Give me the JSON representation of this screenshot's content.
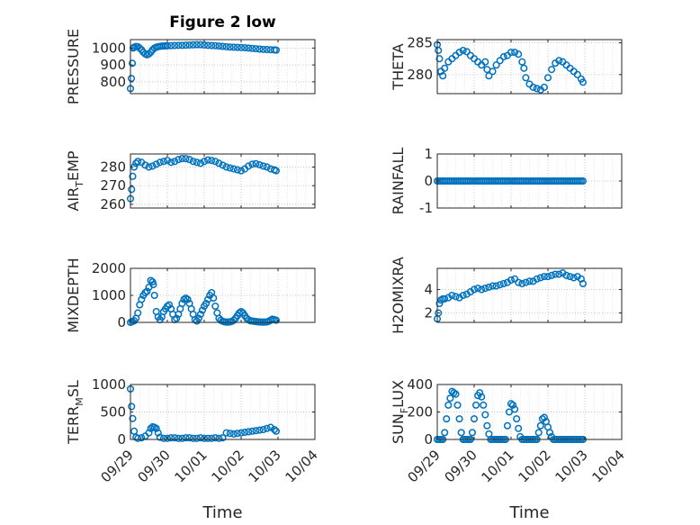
{
  "figure": {
    "title": "Figure 2 low",
    "marker_color": "#0072BD"
  },
  "time_ticks": [
    "09/29",
    "09/30",
    "10/01",
    "10/02",
    "10/03",
    "10/04"
  ],
  "chart_data": [
    {
      "type": "scatter",
      "id": "pressure",
      "title": "Figure 2 low",
      "ylabel": "PRESSURE",
      "xlabel": "",
      "xlim": [
        0,
        5
      ],
      "ylim": [
        730,
        1050
      ],
      "yticks": [
        800,
        900,
        1000
      ],
      "grid": true,
      "x": [
        0,
        0.025,
        0.05,
        0.075,
        0.1,
        0.15,
        0.2,
        0.25,
        0.3,
        0.35,
        0.4,
        0.45,
        0.5,
        0.55,
        0.6,
        0.65,
        0.7,
        0.75,
        0.8,
        0.85,
        0.9,
        0.95,
        1.0,
        1.1,
        1.2,
        1.3,
        1.4,
        1.5,
        1.6,
        1.7,
        1.8,
        1.9,
        2.0,
        2.1,
        2.2,
        2.3,
        2.4,
        2.5,
        2.6,
        2.7,
        2.8,
        2.9,
        3.0,
        3.1,
        3.2,
        3.3,
        3.4,
        3.5,
        3.6,
        3.7,
        3.8,
        3.9,
        3.95
      ],
      "y": [
        760,
        820,
        910,
        1000,
        1005,
        1010,
        1008,
        1000,
        990,
        975,
        965,
        960,
        965,
        975,
        990,
        1000,
        1005,
        1008,
        1010,
        1012,
        1012,
        1013,
        1013,
        1014,
        1015,
        1016,
        1016,
        1017,
        1018,
        1019,
        1020,
        1020,
        1018,
        1016,
        1015,
        1014,
        1012,
        1010,
        1008,
        1006,
        1005,
        1004,
        1003,
        1002,
        1000,
        998,
        996,
        994,
        992,
        991,
        990,
        989,
        988
      ]
    },
    {
      "type": "scatter",
      "id": "theta",
      "title": "",
      "ylabel": "THETA",
      "xlabel": "",
      "xlim": [
        0,
        5
      ],
      "ylim": [
        277,
        285.5
      ],
      "yticks": [
        280,
        285
      ],
      "grid": true,
      "x": [
        0,
        0.03,
        0.06,
        0.1,
        0.15,
        0.2,
        0.3,
        0.4,
        0.5,
        0.6,
        0.7,
        0.8,
        0.9,
        1.0,
        1.1,
        1.2,
        1.3,
        1.35,
        1.4,
        1.5,
        1.6,
        1.7,
        1.8,
        1.9,
        2.0,
        2.1,
        2.2,
        2.3,
        2.35,
        2.4,
        2.5,
        2.6,
        2.7,
        2.8,
        2.9,
        3.0,
        3.1,
        3.2,
        3.3,
        3.4,
        3.5,
        3.6,
        3.7,
        3.8,
        3.9,
        3.95
      ],
      "y": [
        284.7,
        283.8,
        282.5,
        280.5,
        279.8,
        281.0,
        282.0,
        282.5,
        283.0,
        283.5,
        283.8,
        283.6,
        283.0,
        282.5,
        282.0,
        281.5,
        282.0,
        280.8,
        279.8,
        280.5,
        281.5,
        282.2,
        282.8,
        283.0,
        283.5,
        283.5,
        283.2,
        282.0,
        281.0,
        279.5,
        278.5,
        278.0,
        277.8,
        277.6,
        278.0,
        279.5,
        280.8,
        281.8,
        282.2,
        282.0,
        281.5,
        281.0,
        280.5,
        280.0,
        279.3,
        278.8
      ]
    },
    {
      "type": "scatter",
      "id": "air_temp",
      "title": "",
      "ylabel": "AIR_TEMP",
      "ylabel_parts": [
        "AIR",
        "T",
        "EMP"
      ],
      "xlabel": "",
      "xlim": [
        0,
        5
      ],
      "ylim": [
        258,
        287
      ],
      "yticks": [
        260,
        270,
        280
      ],
      "grid": true,
      "x": [
        0,
        0.03,
        0.06,
        0.1,
        0.15,
        0.2,
        0.3,
        0.4,
        0.5,
        0.6,
        0.7,
        0.8,
        0.9,
        1.0,
        1.1,
        1.2,
        1.3,
        1.4,
        1.5,
        1.6,
        1.7,
        1.8,
        1.9,
        2.0,
        2.1,
        2.2,
        2.3,
        2.4,
        2.5,
        2.6,
        2.7,
        2.8,
        2.9,
        3.0,
        3.1,
        3.2,
        3.3,
        3.4,
        3.5,
        3.6,
        3.7,
        3.8,
        3.9,
        3.95
      ],
      "y": [
        263,
        268,
        275,
        280,
        282,
        283,
        282.5,
        281,
        280,
        280.5,
        281.5,
        282.5,
        283,
        283.5,
        282.5,
        283,
        284,
        284.5,
        284.5,
        284,
        283,
        282.5,
        282,
        283,
        283.8,
        283.5,
        283,
        282,
        281,
        280,
        279.5,
        279,
        278.5,
        278,
        279,
        280.5,
        281.5,
        281.8,
        281.2,
        280.5,
        280,
        279,
        278.5,
        278
      ]
    },
    {
      "type": "scatter",
      "id": "rainfall",
      "title": "",
      "ylabel": "RAINFALL",
      "xlabel": "",
      "xlim": [
        0,
        5
      ],
      "ylim": [
        -1,
        1
      ],
      "yticks": [
        -1,
        0,
        1
      ],
      "grid": true,
      "x": [
        0,
        0.05,
        0.1,
        0.15,
        0.2,
        0.25,
        0.3,
        0.35,
        0.4,
        0.45,
        0.5,
        0.55,
        0.6,
        0.65,
        0.7,
        0.75,
        0.8,
        0.85,
        0.9,
        0.95,
        1.0,
        1.05,
        1.1,
        1.15,
        1.2,
        1.25,
        1.3,
        1.35,
        1.4,
        1.45,
        1.5,
        1.55,
        1.6,
        1.65,
        1.7,
        1.75,
        1.8,
        1.85,
        1.9,
        1.95,
        2.0,
        2.05,
        2.1,
        2.15,
        2.2,
        2.25,
        2.3,
        2.35,
        2.4,
        2.45,
        2.5,
        2.55,
        2.6,
        2.65,
        2.7,
        2.75,
        2.8,
        2.85,
        2.9,
        2.95,
        3.0,
        3.05,
        3.1,
        3.15,
        3.2,
        3.25,
        3.3,
        3.35,
        3.4,
        3.45,
        3.5,
        3.55,
        3.6,
        3.65,
        3.7,
        3.75,
        3.8,
        3.85,
        3.9,
        3.95
      ],
      "y": [
        0,
        0,
        0,
        0,
        0,
        0,
        0,
        0,
        0,
        0,
        0,
        0,
        0,
        0,
        0,
        0,
        0,
        0,
        0,
        0,
        0,
        0,
        0,
        0,
        0,
        0,
        0,
        0,
        0,
        0,
        0,
        0,
        0,
        0,
        0,
        0,
        0,
        0,
        0,
        0,
        0,
        0,
        0,
        0,
        0,
        0,
        0,
        0,
        0,
        0,
        0,
        0,
        0,
        0,
        0,
        0,
        0,
        0,
        0,
        0,
        0,
        0,
        0,
        0,
        0,
        0,
        0,
        0,
        0,
        0,
        0,
        0,
        0,
        0,
        0,
        0,
        0,
        0,
        0,
        0
      ]
    },
    {
      "type": "scatter",
      "id": "mixdepth",
      "title": "",
      "ylabel": "MIXDEPTH",
      "xlabel": "",
      "xlim": [
        0,
        5
      ],
      "ylim": [
        0,
        2000
      ],
      "yticks": [
        0,
        1000,
        2000
      ],
      "grid": true,
      "x": [
        0,
        0.05,
        0.1,
        0.15,
        0.2,
        0.25,
        0.3,
        0.35,
        0.4,
        0.45,
        0.5,
        0.55,
        0.6,
        0.62,
        0.65,
        0.7,
        0.75,
        0.8,
        0.85,
        0.9,
        0.95,
        1.0,
        1.05,
        1.1,
        1.15,
        1.2,
        1.25,
        1.3,
        1.35,
        1.4,
        1.45,
        1.5,
        1.55,
        1.6,
        1.65,
        1.7,
        1.75,
        1.8,
        1.85,
        1.9,
        1.95,
        2.0,
        2.05,
        2.1,
        2.15,
        2.2,
        2.25,
        2.3,
        2.35,
        2.4,
        2.45,
        2.5,
        2.55,
        2.6,
        2.65,
        2.7,
        2.75,
        2.8,
        2.85,
        2.9,
        2.95,
        3.0,
        3.05,
        3.1,
        3.15,
        3.2,
        3.25,
        3.3,
        3.35,
        3.4,
        3.45,
        3.5,
        3.55,
        3.6,
        3.65,
        3.7,
        3.75,
        3.8,
        3.85,
        3.9,
        3.95
      ],
      "y": [
        0,
        30,
        60,
        150,
        350,
        650,
        850,
        1000,
        1100,
        1150,
        1300,
        1550,
        1500,
        1400,
        1000,
        400,
        200,
        100,
        200,
        400,
        500,
        600,
        650,
        500,
        300,
        100,
        150,
        300,
        500,
        700,
        850,
        900,
        850,
        700,
        500,
        300,
        100,
        50,
        150,
        300,
        450,
        600,
        700,
        850,
        1000,
        1100,
        900,
        600,
        350,
        150,
        80,
        40,
        20,
        10,
        10,
        20,
        40,
        80,
        150,
        250,
        350,
        400,
        350,
        250,
        150,
        100,
        60,
        50,
        40,
        30,
        20,
        15,
        10,
        10,
        10,
        20,
        40,
        80,
        120,
        100,
        80
      ]
    },
    {
      "type": "scatter",
      "id": "h2omixra",
      "title": "",
      "ylabel": "H2OMIXRA",
      "xlabel": "",
      "xlim": [
        0,
        5
      ],
      "ylim": [
        1.2,
        5.8
      ],
      "yticks": [
        2,
        4
      ],
      "grid": true,
      "x": [
        0,
        0.03,
        0.06,
        0.1,
        0.15,
        0.2,
        0.3,
        0.4,
        0.5,
        0.6,
        0.7,
        0.8,
        0.9,
        1.0,
        1.1,
        1.2,
        1.3,
        1.4,
        1.5,
        1.6,
        1.7,
        1.8,
        1.9,
        2.0,
        2.1,
        2.2,
        2.3,
        2.4,
        2.5,
        2.6,
        2.7,
        2.8,
        2.9,
        3.0,
        3.1,
        3.2,
        3.3,
        3.4,
        3.5,
        3.6,
        3.7,
        3.8,
        3.9,
        3.95
      ],
      "y": [
        1.5,
        2.0,
        2.8,
        3.1,
        3.2,
        3.2,
        3.3,
        3.5,
        3.4,
        3.3,
        3.5,
        3.6,
        3.8,
        4.0,
        4.1,
        4.0,
        4.1,
        4.2,
        4.3,
        4.3,
        4.4,
        4.5,
        4.6,
        4.8,
        4.9,
        4.6,
        4.5,
        4.6,
        4.7,
        4.7,
        4.9,
        5.0,
        5.1,
        5.1,
        5.2,
        5.3,
        5.3,
        5.4,
        5.2,
        5.1,
        5.0,
        5.1,
        4.9,
        4.5
      ]
    },
    {
      "type": "scatter",
      "id": "terr_msl",
      "title": "",
      "ylabel": "TERR_MSL",
      "ylabel_parts": [
        "TERR",
        "M",
        "SL"
      ],
      "xlabel": "Time",
      "xlim": [
        0,
        5
      ],
      "ylim": [
        0,
        1000
      ],
      "yticks": [
        0,
        500,
        1000
      ],
      "grid": true,
      "x": [
        0,
        0.03,
        0.06,
        0.1,
        0.15,
        0.2,
        0.3,
        0.4,
        0.5,
        0.55,
        0.6,
        0.65,
        0.7,
        0.75,
        0.8,
        0.9,
        1.0,
        1.1,
        1.2,
        1.3,
        1.4,
        1.5,
        1.6,
        1.7,
        1.8,
        1.9,
        2.0,
        2.1,
        2.2,
        2.3,
        2.4,
        2.5,
        2.6,
        2.7,
        2.8,
        2.9,
        3.0,
        3.1,
        3.2,
        3.3,
        3.4,
        3.5,
        3.6,
        3.7,
        3.8,
        3.9,
        3.95
      ],
      "y": [
        920,
        600,
        380,
        150,
        40,
        20,
        30,
        60,
        120,
        200,
        230,
        220,
        200,
        120,
        40,
        20,
        20,
        30,
        30,
        20,
        20,
        30,
        30,
        20,
        20,
        30,
        20,
        20,
        20,
        30,
        20,
        30,
        120,
        110,
        100,
        110,
        120,
        130,
        140,
        150,
        160,
        170,
        180,
        200,
        220,
        180,
        150
      ]
    },
    {
      "type": "scatter",
      "id": "sun_flux",
      "title": "",
      "ylabel": "SUN_FLUX",
      "ylabel_parts": [
        "SUN",
        "F",
        "LUX"
      ],
      "xlabel": "Time",
      "xlim": [
        0,
        5
      ],
      "ylim": [
        0,
        400
      ],
      "yticks": [
        0,
        200,
        400
      ],
      "grid": true,
      "x": [
        0,
        0.05,
        0.1,
        0.15,
        0.2,
        0.25,
        0.3,
        0.35,
        0.4,
        0.45,
        0.5,
        0.55,
        0.6,
        0.65,
        0.7,
        0.75,
        0.8,
        0.85,
        0.9,
        0.95,
        1.0,
        1.05,
        1.1,
        1.15,
        1.2,
        1.25,
        1.3,
        1.35,
        1.4,
        1.45,
        1.5,
        1.55,
        1.6,
        1.65,
        1.7,
        1.75,
        1.8,
        1.85,
        1.9,
        1.95,
        2.0,
        2.05,
        2.1,
        2.15,
        2.2,
        2.25,
        2.3,
        2.35,
        2.4,
        2.45,
        2.5,
        2.55,
        2.6,
        2.65,
        2.7,
        2.75,
        2.8,
        2.85,
        2.9,
        2.95,
        3.0,
        3.05,
        3.1,
        3.15,
        3.2,
        3.25,
        3.3,
        3.35,
        3.4,
        3.45,
        3.5,
        3.55,
        3.6,
        3.65,
        3.7,
        3.75,
        3.8,
        3.85,
        3.9,
        3.95
      ],
      "y": [
        0,
        0,
        0,
        0,
        50,
        150,
        250,
        300,
        350,
        340,
        330,
        250,
        150,
        50,
        0,
        0,
        0,
        0,
        0,
        50,
        150,
        250,
        320,
        340,
        310,
        250,
        180,
        100,
        40,
        0,
        0,
        0,
        0,
        0,
        0,
        0,
        0,
        0,
        100,
        200,
        260,
        250,
        220,
        150,
        80,
        20,
        0,
        0,
        0,
        0,
        0,
        0,
        0,
        0,
        0,
        50,
        100,
        150,
        160,
        130,
        90,
        50,
        20,
        0,
        0,
        0,
        0,
        0,
        0,
        0,
        0,
        0,
        0,
        0,
        0,
        0,
        0,
        0,
        0,
        0
      ]
    }
  ]
}
